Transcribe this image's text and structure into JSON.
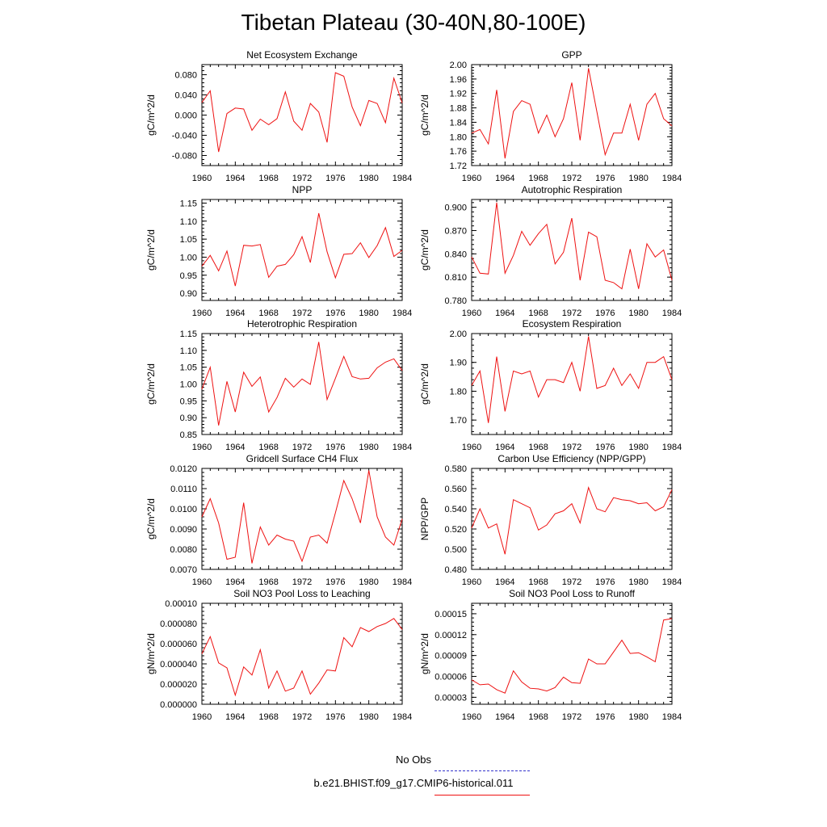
{
  "page": {
    "title": "Tibetan Plateau (30-40N,80-100E)"
  },
  "legend": {
    "entries": [
      {
        "label": "No Obs",
        "color": "#3333cc",
        "style": "dashed"
      },
      {
        "label": "b.e21.BHIST.f09_g17.CMIP6-historical.011",
        "color": "#ee1111",
        "style": "solid"
      }
    ]
  },
  "chart_data": [
    {
      "type": "line",
      "title": "Net Ecosystem Exchange",
      "xlabel": "",
      "ylabel": "gC/m^2/d",
      "xlim": [
        1960,
        1984
      ],
      "ylim": [
        -0.1,
        0.1
      ],
      "xticks": [
        "1960",
        "1964",
        "1968",
        "1972",
        "1976",
        "1980",
        "1984"
      ],
      "yticks": [
        "-0.080",
        "-0.040",
        "0.000",
        "0.040",
        "0.080"
      ],
      "ytick_values": [
        -0.08,
        -0.04,
        0.0,
        0.04,
        0.08
      ],
      "grid": false,
      "color": "#ee1111",
      "x": [
        1960,
        1961,
        1962,
        1963,
        1964,
        1965,
        1966,
        1967,
        1968,
        1969,
        1970,
        1971,
        1972,
        1973,
        1974,
        1975,
        1976,
        1977,
        1978,
        1979,
        1980,
        1981,
        1982,
        1983,
        1984
      ],
      "y": [
        0.025,
        0.048,
        -0.073,
        0.003,
        0.014,
        0.012,
        -0.03,
        -0.008,
        -0.019,
        -0.007,
        0.046,
        -0.012,
        -0.03,
        0.023,
        0.006,
        -0.054,
        0.084,
        0.077,
        0.016,
        -0.021,
        0.029,
        0.023,
        -0.015,
        0.073,
        0.024
      ]
    },
    {
      "type": "line",
      "title": "GPP",
      "xlabel": "",
      "ylabel": "gC/m^2/d",
      "xlim": [
        1960,
        1984
      ],
      "ylim": [
        1.72,
        2.0
      ],
      "xticks": [
        "1960",
        "1964",
        "1968",
        "1972",
        "1976",
        "1980",
        "1984"
      ],
      "yticks": [
        "1.72",
        "1.76",
        "1.80",
        "1.84",
        "1.88",
        "1.92",
        "1.96",
        "2.00"
      ],
      "ytick_values": [
        1.72,
        1.76,
        1.8,
        1.84,
        1.88,
        1.92,
        1.96,
        2.0
      ],
      "grid": false,
      "color": "#ee1111",
      "x": [
        1960,
        1961,
        1962,
        1963,
        1964,
        1965,
        1966,
        1967,
        1968,
        1969,
        1970,
        1971,
        1972,
        1973,
        1974,
        1975,
        1976,
        1977,
        1978,
        1979,
        1980,
        1981,
        1982,
        1983,
        1984
      ],
      "y": [
        1.81,
        1.82,
        1.78,
        1.93,
        1.74,
        1.87,
        1.9,
        1.89,
        1.81,
        1.86,
        1.8,
        1.85,
        1.95,
        1.79,
        1.99,
        1.87,
        1.75,
        1.81,
        1.81,
        1.89,
        1.79,
        1.89,
        1.92,
        1.85,
        1.83
      ]
    },
    {
      "type": "line",
      "title": "NPP",
      "xlabel": "",
      "ylabel": "gC/m^2/d",
      "xlim": [
        1960,
        1984
      ],
      "ylim": [
        0.88,
        1.16
      ],
      "xticks": [
        "1960",
        "1964",
        "1968",
        "1972",
        "1976",
        "1980",
        "1984"
      ],
      "yticks": [
        "0.90",
        "0.95",
        "1.00",
        "1.05",
        "1.10",
        "1.15"
      ],
      "ytick_values": [
        0.9,
        0.95,
        1.0,
        1.05,
        1.1,
        1.15
      ],
      "grid": false,
      "color": "#ee1111",
      "x": [
        1960,
        1961,
        1962,
        1963,
        1964,
        1965,
        1966,
        1967,
        1968,
        1969,
        1970,
        1971,
        1972,
        1973,
        1974,
        1975,
        1976,
        1977,
        1978,
        1979,
        1980,
        1981,
        1982,
        1983,
        1984
      ],
      "y": [
        0.975,
        1.005,
        0.962,
        1.017,
        0.92,
        1.033,
        1.031,
        1.035,
        0.944,
        0.975,
        0.98,
        1.007,
        1.057,
        0.985,
        1.122,
        1.015,
        0.943,
        1.008,
        1.01,
        1.04,
        0.999,
        1.032,
        1.082,
        1.002,
        1.019
      ]
    },
    {
      "type": "line",
      "title": "Autotrophic Respiration",
      "xlabel": "",
      "ylabel": "gC/m^2/d",
      "xlim": [
        1960,
        1984
      ],
      "ylim": [
        0.78,
        0.91
      ],
      "xticks": [
        "1960",
        "1964",
        "1968",
        "1972",
        "1976",
        "1980",
        "1984"
      ],
      "yticks": [
        "0.780",
        "0.810",
        "0.840",
        "0.870",
        "0.900"
      ],
      "ytick_values": [
        0.78,
        0.81,
        0.84,
        0.87,
        0.9
      ],
      "grid": false,
      "color": "#ee1111",
      "x": [
        1960,
        1961,
        1962,
        1963,
        1964,
        1965,
        1966,
        1967,
        1968,
        1969,
        1970,
        1971,
        1972,
        1973,
        1974,
        1975,
        1976,
        1977,
        1978,
        1979,
        1980,
        1981,
        1982,
        1983,
        1984
      ],
      "y": [
        0.836,
        0.815,
        0.814,
        0.906,
        0.815,
        0.838,
        0.869,
        0.851,
        0.866,
        0.878,
        0.827,
        0.842,
        0.886,
        0.806,
        0.868,
        0.862,
        0.806,
        0.803,
        0.795,
        0.846,
        0.795,
        0.853,
        0.836,
        0.845,
        0.806
      ]
    },
    {
      "type": "line",
      "title": "Heterotrophic Respiration",
      "xlabel": "",
      "ylabel": "gC/m^2/d",
      "xlim": [
        1960,
        1984
      ],
      "ylim": [
        0.85,
        1.15
      ],
      "xticks": [
        "1960",
        "1964",
        "1968",
        "1972",
        "1976",
        "1980",
        "1984"
      ],
      "yticks": [
        "0.85",
        "0.90",
        "0.95",
        "1.00",
        "1.05",
        "1.10",
        "1.15"
      ],
      "ytick_values": [
        0.85,
        0.9,
        0.95,
        1.0,
        1.05,
        1.1,
        1.15
      ],
      "grid": false,
      "color": "#ee1111",
      "x": [
        1960,
        1961,
        1962,
        1963,
        1964,
        1965,
        1966,
        1967,
        1968,
        1969,
        1970,
        1971,
        1972,
        1973,
        1974,
        1975,
        1976,
        1977,
        1978,
        1979,
        1980,
        1981,
        1982,
        1983,
        1984
      ],
      "y": [
        0.985,
        1.05,
        0.877,
        1.008,
        0.917,
        1.035,
        0.993,
        1.021,
        0.917,
        0.96,
        1.017,
        0.991,
        1.015,
        0.999,
        1.125,
        0.954,
        1.017,
        1.082,
        1.022,
        1.015,
        1.017,
        1.048,
        1.065,
        1.075,
        1.04
      ]
    },
    {
      "type": "line",
      "title": "Ecosystem Respiration",
      "xlabel": "",
      "ylabel": "gC/m^2/d",
      "xlim": [
        1960,
        1984
      ],
      "ylim": [
        1.65,
        2.0
      ],
      "xticks": [
        "1960",
        "1964",
        "1968",
        "1972",
        "1976",
        "1980",
        "1984"
      ],
      "yticks": [
        "1.70",
        "1.80",
        "1.90",
        "2.00"
      ],
      "ytick_values": [
        1.7,
        1.8,
        1.9,
        2.0
      ],
      "grid": false,
      "color": "#ee1111",
      "x": [
        1960,
        1961,
        1962,
        1963,
        1964,
        1965,
        1966,
        1967,
        1968,
        1969,
        1970,
        1971,
        1972,
        1973,
        1974,
        1975,
        1976,
        1977,
        1978,
        1979,
        1980,
        1981,
        1982,
        1983,
        1984
      ],
      "y": [
        1.82,
        1.87,
        1.69,
        1.92,
        1.73,
        1.87,
        1.86,
        1.87,
        1.78,
        1.84,
        1.84,
        1.83,
        1.9,
        1.8,
        1.99,
        1.81,
        1.82,
        1.88,
        1.82,
        1.86,
        1.81,
        1.9,
        1.9,
        1.92,
        1.84
      ]
    },
    {
      "type": "line",
      "title": "Gridcell Surface CH4 Flux",
      "xlabel": "",
      "ylabel": "gC/m^2/d",
      "xlim": [
        1960,
        1984
      ],
      "ylim": [
        0.007,
        0.012
      ],
      "xticks": [
        "1960",
        "1964",
        "1968",
        "1972",
        "1976",
        "1980",
        "1984"
      ],
      "yticks": [
        "0.0070",
        "0.0080",
        "0.0090",
        "0.0100",
        "0.0110",
        "0.0120"
      ],
      "ytick_values": [
        0.007,
        0.008,
        0.009,
        0.01,
        0.011,
        0.012
      ],
      "grid": false,
      "color": "#ee1111",
      "x": [
        1960,
        1961,
        1962,
        1963,
        1964,
        1965,
        1966,
        1967,
        1968,
        1969,
        1970,
        1971,
        1972,
        1973,
        1974,
        1975,
        1976,
        1977,
        1978,
        1979,
        1980,
        1981,
        1982,
        1983,
        1984
      ],
      "y": [
        0.0096,
        0.0105,
        0.0093,
        0.0075,
        0.0076,
        0.0103,
        0.0073,
        0.0091,
        0.0082,
        0.0087,
        0.0085,
        0.0084,
        0.0074,
        0.0086,
        0.0087,
        0.0083,
        0.0098,
        0.0114,
        0.0105,
        0.0093,
        0.0119,
        0.0096,
        0.0086,
        0.0082,
        0.0095
      ]
    },
    {
      "type": "line",
      "title": "Carbon Use Efficiency (NPP/GPP)",
      "xlabel": "",
      "ylabel": "NPP/GPP",
      "xlim": [
        1960,
        1984
      ],
      "ylim": [
        0.48,
        0.58
      ],
      "xticks": [
        "1960",
        "1964",
        "1968",
        "1972",
        "1976",
        "1980",
        "1984"
      ],
      "yticks": [
        "0.480",
        "0.500",
        "0.520",
        "0.540",
        "0.560",
        "0.580"
      ],
      "ytick_values": [
        0.48,
        0.5,
        0.52,
        0.54,
        0.56,
        0.58
      ],
      "grid": false,
      "color": "#ee1111",
      "x": [
        1960,
        1961,
        1962,
        1963,
        1964,
        1965,
        1966,
        1967,
        1968,
        1969,
        1970,
        1971,
        1972,
        1973,
        1974,
        1975,
        1976,
        1977,
        1978,
        1979,
        1980,
        1981,
        1982,
        1983,
        1984
      ],
      "y": [
        0.521,
        0.54,
        0.521,
        0.525,
        0.495,
        0.549,
        0.545,
        0.541,
        0.519,
        0.524,
        0.535,
        0.538,
        0.545,
        0.526,
        0.561,
        0.54,
        0.537,
        0.551,
        0.549,
        0.548,
        0.545,
        0.546,
        0.538,
        0.542,
        0.559
      ]
    },
    {
      "type": "line",
      "title": "Soil NO3 Pool Loss to Leaching",
      "xlabel": "",
      "ylabel": "gN/m^2/d",
      "xlim": [
        1960,
        1984
      ],
      "ylim": [
        0.0,
        0.0001
      ],
      "xticks": [
        "1960",
        "1964",
        "1968",
        "1972",
        "1976",
        "1980",
        "1984"
      ],
      "yticks": [
        "0.000000",
        "0.000020",
        "0.000040",
        "0.000060",
        "0.000080",
        "0.00010"
      ],
      "ytick_values": [
        0.0,
        2e-05,
        4e-05,
        6e-05,
        8e-05,
        0.0001
      ],
      "grid": false,
      "color": "#ee1111",
      "x": [
        1960,
        1961,
        1962,
        1963,
        1964,
        1965,
        1966,
        1967,
        1968,
        1969,
        1970,
        1971,
        1972,
        1973,
        1974,
        1975,
        1976,
        1977,
        1978,
        1979,
        1980,
        1981,
        1982,
        1983,
        1984
      ],
      "y": [
        5e-05,
        6.7e-05,
        4.1e-05,
        3.6e-05,
        9e-06,
        3.7e-05,
        2.9e-05,
        5.4e-05,
        1.6e-05,
        3.3e-05,
        1.3e-05,
        1.6e-05,
        3.3e-05,
        1e-05,
        2.1e-05,
        3.4e-05,
        3.3e-05,
        6.6e-05,
        5.7e-05,
        7.6e-05,
        7.2e-05,
        7.7e-05,
        8e-05,
        8.5e-05,
        7.4e-05
      ]
    },
    {
      "type": "line",
      "title": "Soil NO3 Pool Loss to Runoff",
      "xlabel": "",
      "ylabel": "gN/m^2/d",
      "xlim": [
        1960,
        1984
      ],
      "ylim": [
        2e-05,
        0.000165
      ],
      "xticks": [
        "1960",
        "1964",
        "1968",
        "1972",
        "1976",
        "1980",
        "1984"
      ],
      "yticks": [
        "0.00003",
        "0.00006",
        "0.00009",
        "0.00012",
        "0.00015"
      ],
      "ytick_values": [
        3e-05,
        6e-05,
        9e-05,
        0.00012,
        0.00015
      ],
      "grid": false,
      "color": "#ee1111",
      "x": [
        1960,
        1961,
        1962,
        1963,
        1964,
        1965,
        1966,
        1967,
        1968,
        1969,
        1970,
        1971,
        1972,
        1973,
        1974,
        1975,
        1976,
        1977,
        1978,
        1979,
        1980,
        1981,
        1982,
        1983,
        1984
      ],
      "y": [
        5.5e-05,
        4.8e-05,
        4.9e-05,
        4.1e-05,
        3.6e-05,
        6.8e-05,
        5.2e-05,
        4.3e-05,
        4.2e-05,
        3.9e-05,
        4.4e-05,
        5.9e-05,
        5.1e-05,
        5e-05,
        8.5e-05,
        7.8e-05,
        7.8e-05,
        9.5e-05,
        0.000112,
        9.3e-05,
        9.4e-05,
        8.8e-05,
        8.1e-05,
        0.000141,
        0.000143
      ]
    }
  ]
}
